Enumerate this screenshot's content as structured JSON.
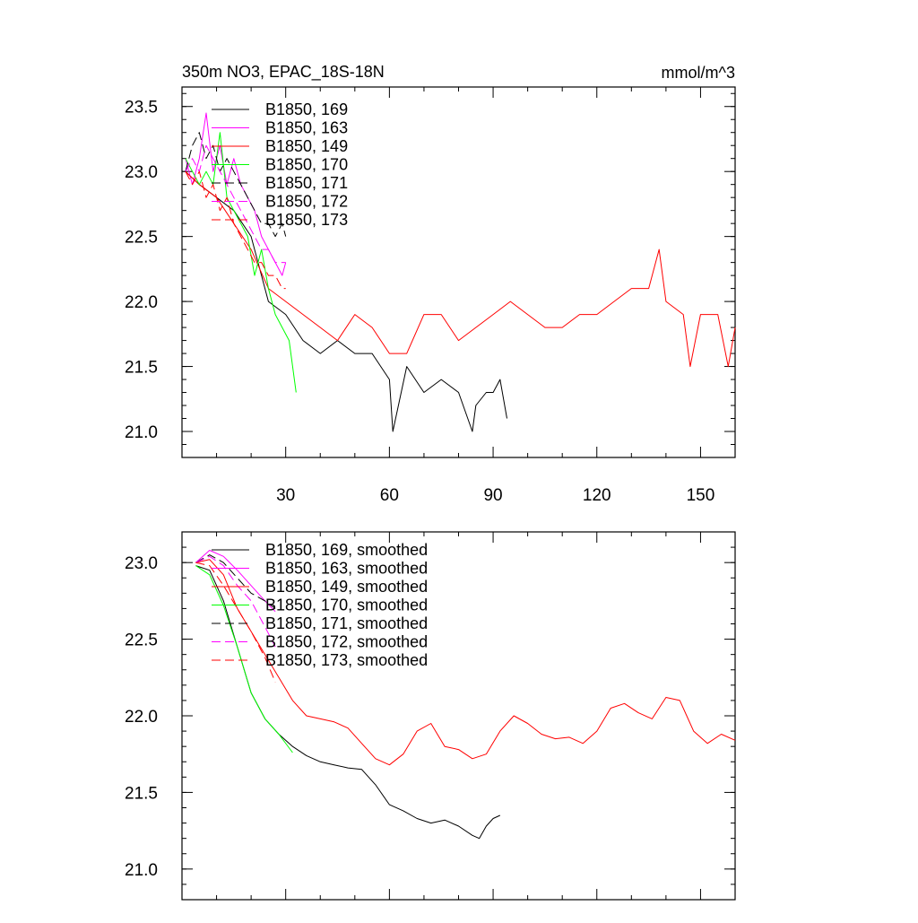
{
  "chart_data": [
    {
      "type": "line",
      "title": "350m NO3, EPAC_18S-18N",
      "units": "mmol/m^3",
      "xlim": [
        0,
        160
      ],
      "ylim": [
        20.8,
        23.65
      ],
      "x_ticks": [
        30,
        60,
        90,
        120,
        150
      ],
      "y_ticks": [
        21.0,
        21.5,
        22.0,
        22.5,
        23.0,
        23.5
      ],
      "tick_labels_y": [
        "21.0",
        "21.5",
        "22.0",
        "22.5",
        "23.0",
        "23.5"
      ],
      "tick_labels_x": [
        "30",
        "60",
        "90",
        "120",
        "150"
      ],
      "legend_position": "top-left",
      "series": [
        {
          "name": "B1850, 169",
          "color": "#000000",
          "dash": "solid",
          "x": [
            1,
            5,
            10,
            15,
            20,
            25,
            30,
            35,
            40,
            45,
            50,
            55,
            60,
            61,
            65,
            70,
            75,
            80,
            84,
            85,
            88,
            90,
            92,
            94
          ],
          "y": [
            23.0,
            22.9,
            22.8,
            22.7,
            22.5,
            22.0,
            21.9,
            21.7,
            21.6,
            21.7,
            21.6,
            21.6,
            21.4,
            21.0,
            21.5,
            21.3,
            21.4,
            21.3,
            21.0,
            21.2,
            21.3,
            21.3,
            21.4,
            21.1
          ]
        },
        {
          "name": "B1850, 163",
          "color": "#ff00ff",
          "dash": "solid",
          "x": [
            1,
            3,
            5,
            7,
            9,
            11,
            13,
            15,
            17,
            19,
            21,
            23,
            25,
            27,
            29,
            30
          ],
          "y": [
            23.1,
            22.9,
            23.1,
            23.45,
            23.0,
            23.2,
            22.9,
            23.1,
            22.9,
            22.8,
            22.7,
            22.5,
            22.4,
            22.3,
            22.2,
            22.3
          ]
        },
        {
          "name": "B1850, 149",
          "color": "#ff0000",
          "dash": "solid",
          "x": [
            1,
            5,
            10,
            15,
            20,
            25,
            30,
            35,
            40,
            45,
            50,
            55,
            60,
            65,
            70,
            75,
            80,
            85,
            90,
            95,
            100,
            105,
            110,
            115,
            120,
            125,
            130,
            135,
            138,
            140,
            145,
            147,
            150,
            155,
            158,
            160
          ],
          "y": [
            23.0,
            22.9,
            22.8,
            22.6,
            22.4,
            22.1,
            22.0,
            21.9,
            21.8,
            21.7,
            21.9,
            21.8,
            21.6,
            21.6,
            21.9,
            21.9,
            21.7,
            21.8,
            21.9,
            22.0,
            21.9,
            21.8,
            21.8,
            21.9,
            21.9,
            22.0,
            22.1,
            22.1,
            22.4,
            22.0,
            21.9,
            21.5,
            21.9,
            21.9,
            21.5,
            21.8
          ]
        },
        {
          "name": "B1850, 170",
          "color": "#00ff00",
          "dash": "solid",
          "x": [
            1,
            3,
            5,
            7,
            9,
            11,
            13,
            15,
            17,
            19,
            21,
            23,
            25,
            27,
            29,
            31,
            33
          ],
          "y": [
            23.1,
            23.0,
            22.9,
            23.0,
            22.9,
            23.3,
            22.8,
            22.7,
            22.6,
            22.5,
            22.2,
            22.4,
            22.1,
            21.9,
            21.8,
            21.7,
            21.3
          ]
        },
        {
          "name": "B1850, 171",
          "color": "#000000",
          "dash": "dash",
          "x": [
            1,
            3,
            5,
            7,
            9,
            11,
            13,
            15,
            17,
            19,
            21,
            23,
            25,
            27,
            29,
            30
          ],
          "y": [
            23.0,
            23.2,
            23.3,
            23.1,
            23.2,
            23.0,
            23.1,
            23.0,
            22.9,
            22.8,
            22.7,
            22.6,
            22.6,
            22.5,
            22.6,
            22.5
          ]
        },
        {
          "name": "B1850, 172",
          "color": "#ff00ff",
          "dash": "dash",
          "x": [
            1,
            3,
            5,
            7,
            9,
            11,
            13,
            15,
            17,
            19,
            21,
            23,
            25,
            27,
            29,
            30
          ],
          "y": [
            23.0,
            23.1,
            23.0,
            23.2,
            23.1,
            23.0,
            22.9,
            22.8,
            22.7,
            22.6,
            22.5,
            22.4,
            22.4,
            22.3,
            22.3,
            22.3
          ]
        },
        {
          "name": "B1850, 173",
          "color": "#ff0000",
          "dash": "dash",
          "x": [
            1,
            3,
            5,
            7,
            9,
            11,
            13,
            15,
            17,
            19,
            21,
            23,
            25,
            27,
            29,
            30
          ],
          "y": [
            23.0,
            22.9,
            23.0,
            22.8,
            22.9,
            22.7,
            22.8,
            22.6,
            22.5,
            22.4,
            22.3,
            22.3,
            22.2,
            22.2,
            22.1,
            22.1
          ]
        }
      ]
    },
    {
      "type": "line",
      "xlim": [
        0,
        160
      ],
      "ylim": [
        20.8,
        23.2
      ],
      "x_ticks": [
        30,
        60,
        90,
        120,
        150
      ],
      "y_ticks": [
        21.0,
        21.5,
        22.0,
        22.5,
        23.0
      ],
      "tick_labels_y": [
        "21.0",
        "21.5",
        "22.0",
        "22.5",
        "23.0"
      ],
      "legend_position": "top-left",
      "series": [
        {
          "name": "B1850, 169, smoothed",
          "color": "#000000",
          "dash": "solid",
          "x": [
            4,
            8,
            12,
            16,
            20,
            24,
            28,
            32,
            36,
            40,
            44,
            48,
            52,
            56,
            60,
            64,
            68,
            72,
            76,
            80,
            84,
            86,
            88,
            90,
            92
          ],
          "y": [
            22.98,
            22.95,
            22.75,
            22.45,
            22.15,
            21.98,
            21.88,
            21.8,
            21.74,
            21.7,
            21.68,
            21.66,
            21.65,
            21.55,
            21.42,
            21.38,
            21.33,
            21.3,
            21.32,
            21.28,
            21.22,
            21.2,
            21.28,
            21.33,
            21.35
          ]
        },
        {
          "name": "B1850, 163, smoothed",
          "color": "#ff00ff",
          "dash": "solid",
          "x": [
            4,
            8,
            12,
            16,
            20,
            24,
            27
          ],
          "y": [
            23.0,
            23.08,
            23.04,
            22.95,
            22.85,
            22.75,
            22.68
          ]
        },
        {
          "name": "B1850, 149, smoothed",
          "color": "#ff0000",
          "dash": "solid",
          "x": [
            4,
            8,
            12,
            16,
            20,
            24,
            28,
            32,
            36,
            40,
            44,
            48,
            52,
            56,
            60,
            64,
            68,
            72,
            76,
            80,
            84,
            88,
            92,
            96,
            100,
            104,
            108,
            112,
            116,
            120,
            124,
            128,
            132,
            136,
            140,
            144,
            148,
            152,
            156,
            160
          ],
          "y": [
            23.0,
            23.02,
            22.92,
            22.7,
            22.55,
            22.4,
            22.25,
            22.1,
            22.0,
            21.98,
            21.96,
            21.92,
            21.82,
            21.72,
            21.68,
            21.75,
            21.9,
            21.95,
            21.8,
            21.78,
            21.72,
            21.75,
            21.9,
            22.0,
            21.95,
            21.88,
            21.85,
            21.86,
            21.82,
            21.9,
            22.05,
            22.08,
            22.02,
            21.98,
            22.12,
            22.1,
            21.9,
            21.82,
            21.88,
            21.84
          ]
        },
        {
          "name": "B1850, 170, smoothed",
          "color": "#00ff00",
          "dash": "solid",
          "x": [
            4,
            8,
            12,
            16,
            20,
            24,
            28,
            32
          ],
          "y": [
            22.98,
            22.92,
            22.72,
            22.45,
            22.15,
            21.98,
            21.88,
            21.76
          ]
        },
        {
          "name": "B1850, 171, smoothed",
          "color": "#000000",
          "dash": "dash",
          "x": [
            4,
            8,
            12,
            16,
            20,
            24,
            27
          ],
          "y": [
            23.0,
            23.05,
            23.0,
            22.9,
            22.8,
            22.75,
            22.7
          ]
        },
        {
          "name": "B1850, 172, smoothed",
          "color": "#ff00ff",
          "dash": "dash",
          "x": [
            4,
            8,
            12,
            16,
            20,
            24,
            27
          ],
          "y": [
            23.0,
            23.04,
            22.98,
            22.85,
            22.75,
            22.58,
            22.45
          ]
        },
        {
          "name": "B1850, 173, smoothed",
          "color": "#ff0000",
          "dash": "dash",
          "x": [
            4,
            8,
            12,
            16,
            20,
            24,
            27
          ],
          "y": [
            23.0,
            22.98,
            22.85,
            22.7,
            22.55,
            22.38,
            22.22
          ]
        }
      ]
    }
  ]
}
